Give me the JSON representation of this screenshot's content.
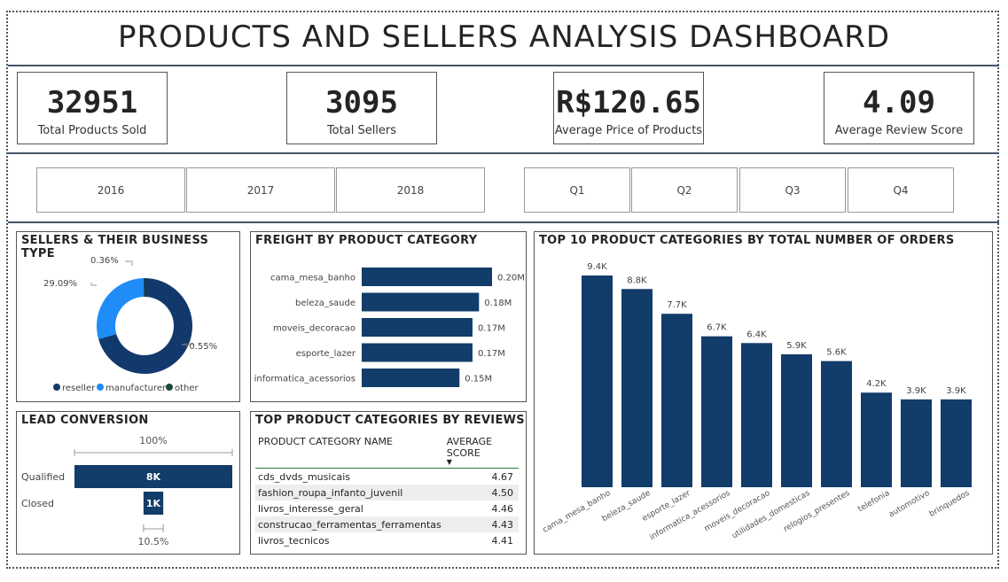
{
  "header": {
    "title": "PRODUCTS AND SELLERS ANALYSIS DASHBOARD"
  },
  "kpis": [
    {
      "value": "32951",
      "label": "Total Products Sold"
    },
    {
      "value": "3095",
      "label": "Total Sellers"
    },
    {
      "value": "R$120.65",
      "label": "Average Price of Products"
    },
    {
      "value": "4.09",
      "label": "Average Review Score"
    }
  ],
  "slicers": {
    "years": [
      "2016",
      "2017",
      "2018"
    ],
    "quarters": [
      "Q1",
      "Q2",
      "Q3",
      "Q4"
    ]
  },
  "panels": {
    "sellers_title": "SELLERS & THEIR BUSINESS TYPE",
    "freight_title": "FREIGHT BY PRODUCT CATEGORY",
    "top10_title": "TOP 10 PRODUCT CATEGORIES BY TOTAL NUMBER OF ORDERS",
    "lead_title": "LEAD CONVERSION",
    "reviews_title": "TOP PRODUCT CATEGORIES BY REVIEWS"
  },
  "colors": {
    "dark_navy": "#12396b",
    "blue": "#1f8cf7",
    "other": "#1c4a3a",
    "bar": "#123c69"
  },
  "chart_data": [
    {
      "type": "pie",
      "donut": true,
      "title": "SELLERS & THEIR BUSINESS TYPE",
      "slices": [
        {
          "name": "reseller",
          "value": 70.55,
          "label": "70.55%",
          "color": "#12396b"
        },
        {
          "name": "manufacturer",
          "value": 29.09,
          "label": "29.09%",
          "color": "#1f8cf7"
        },
        {
          "name": "other",
          "value": 0.36,
          "label": "0.36%",
          "color": "#1c4a3a"
        }
      ],
      "legend": "bottom"
    },
    {
      "type": "bar",
      "orientation": "horizontal",
      "title": "FREIGHT BY PRODUCT CATEGORY",
      "categories": [
        "cama_mesa_banho",
        "beleza_saude",
        "moveis_decoracao",
        "esporte_lazer",
        "informatica_acessorios"
      ],
      "values": [
        0.2,
        0.18,
        0.17,
        0.17,
        0.15
      ],
      "labels": [
        "0.20M",
        "0.18M",
        "0.17M",
        "0.17M",
        "0.15M"
      ],
      "unit": "M"
    },
    {
      "type": "bar",
      "title": "TOP 10 PRODUCT CATEGORIES BY TOTAL NUMBER OF ORDERS",
      "categories": [
        "cama_mesa_banho",
        "beleza_saude",
        "esporte_lazer",
        "informatica_acessorios",
        "moveis_decoracao",
        "utilidades_domesticas",
        "relogios_presentes",
        "telefonia",
        "automotivo",
        "brinquedos"
      ],
      "values": [
        9.4,
        8.8,
        7.7,
        6.7,
        6.4,
        5.9,
        5.6,
        4.2,
        3.9,
        3.9
      ],
      "labels": [
        "9.4K",
        "8.8K",
        "7.7K",
        "6.7K",
        "6.4K",
        "5.9K",
        "5.6K",
        "4.2K",
        "3.9K",
        "3.9K"
      ],
      "unit": "K"
    },
    {
      "type": "bar",
      "subtype": "funnel",
      "title": "LEAD CONVERSION",
      "categories": [
        "Qualified",
        "Closed"
      ],
      "values": [
        8,
        1
      ],
      "labels": [
        "8K",
        "1K"
      ],
      "top_percent": "100%",
      "bottom_percent": "10.5%"
    },
    {
      "type": "table",
      "title": "TOP PRODUCT CATEGORIES BY REVIEWS",
      "columns": [
        "PRODUCT CATEGORY NAME",
        "AVERAGE SCORE"
      ],
      "sort_indicator": "▼",
      "rows": [
        [
          "cds_dvds_musicais",
          "4.67"
        ],
        [
          "fashion_roupa_infanto_juvenil",
          "4.50"
        ],
        [
          "livros_interesse_geral",
          "4.46"
        ],
        [
          "construcao_ferramentas_ferramentas",
          "4.43"
        ],
        [
          "livros_tecnicos",
          "4.41"
        ]
      ]
    }
  ]
}
